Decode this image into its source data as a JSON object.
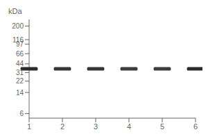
{
  "chart_data": {
    "type": "blot",
    "categories": [
      "1",
      "2",
      "3",
      "4",
      "5",
      "6"
    ],
    "values": [
      36,
      36,
      36,
      36,
      36,
      36
    ],
    "intensities": [
      0.92,
      0.88,
      0.88,
      0.85,
      0.85,
      0.92
    ],
    "color": "#1a1a1a",
    "ylim": [
      5,
      260
    ],
    "yticks": [
      200,
      116,
      97,
      66,
      44,
      31,
      22,
      14,
      6
    ],
    "log": "y",
    "y_label": "kDa",
    "grid": false
  }
}
